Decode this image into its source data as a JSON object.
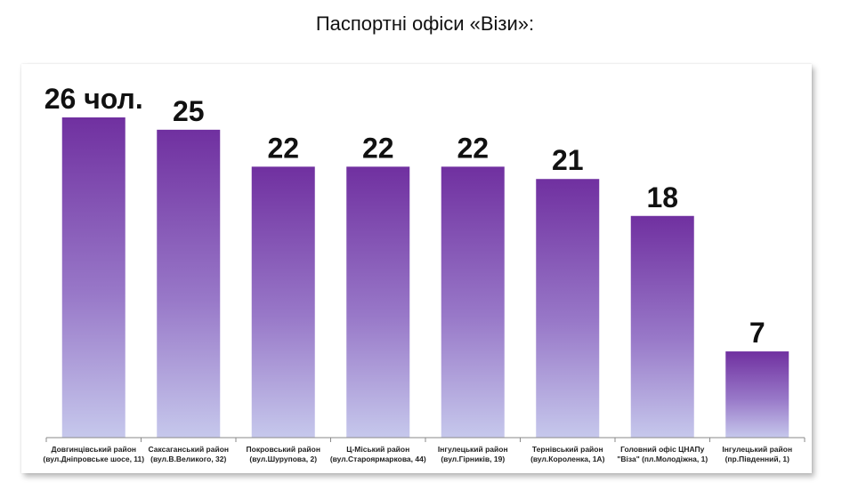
{
  "title": "Паспортні офіси «Візи»:",
  "chart_data": {
    "type": "bar",
    "title": "Паспортні офіси «Візи»:",
    "categories": [
      [
        "Довгинцівський район",
        "(вул.Дніпровське шосе, 11)"
      ],
      [
        "Саксаганський район",
        "(вул.В.Великого, 32)"
      ],
      [
        "Покровський район",
        "(вул.Шурупова, 2)"
      ],
      [
        "Ц-Міський район",
        "(вул.Староярмаркова, 44)"
      ],
      [
        "Інгулецький район",
        "(вул.Гірників, 19)"
      ],
      [
        "Тернівський район",
        "(вул.Короленка, 1А)"
      ],
      [
        "Головний офіс ЦНАПу",
        "\"Віза\" (пл.Молодіжна, 1)"
      ],
      [
        "Інгулецький район",
        "(пр.Південний, 1)"
      ]
    ],
    "values": [
      26,
      25,
      22,
      22,
      22,
      21,
      18,
      7
    ],
    "data_labels": [
      "26 чол.",
      "25",
      "22",
      "22",
      "22",
      "21",
      "18",
      "7"
    ],
    "ylim": [
      0,
      26
    ],
    "grid": false,
    "colors": {
      "bar_top": "#7030a0",
      "bar_bottom": "#c6c8ec",
      "axis": "#8a8a8a"
    }
  }
}
